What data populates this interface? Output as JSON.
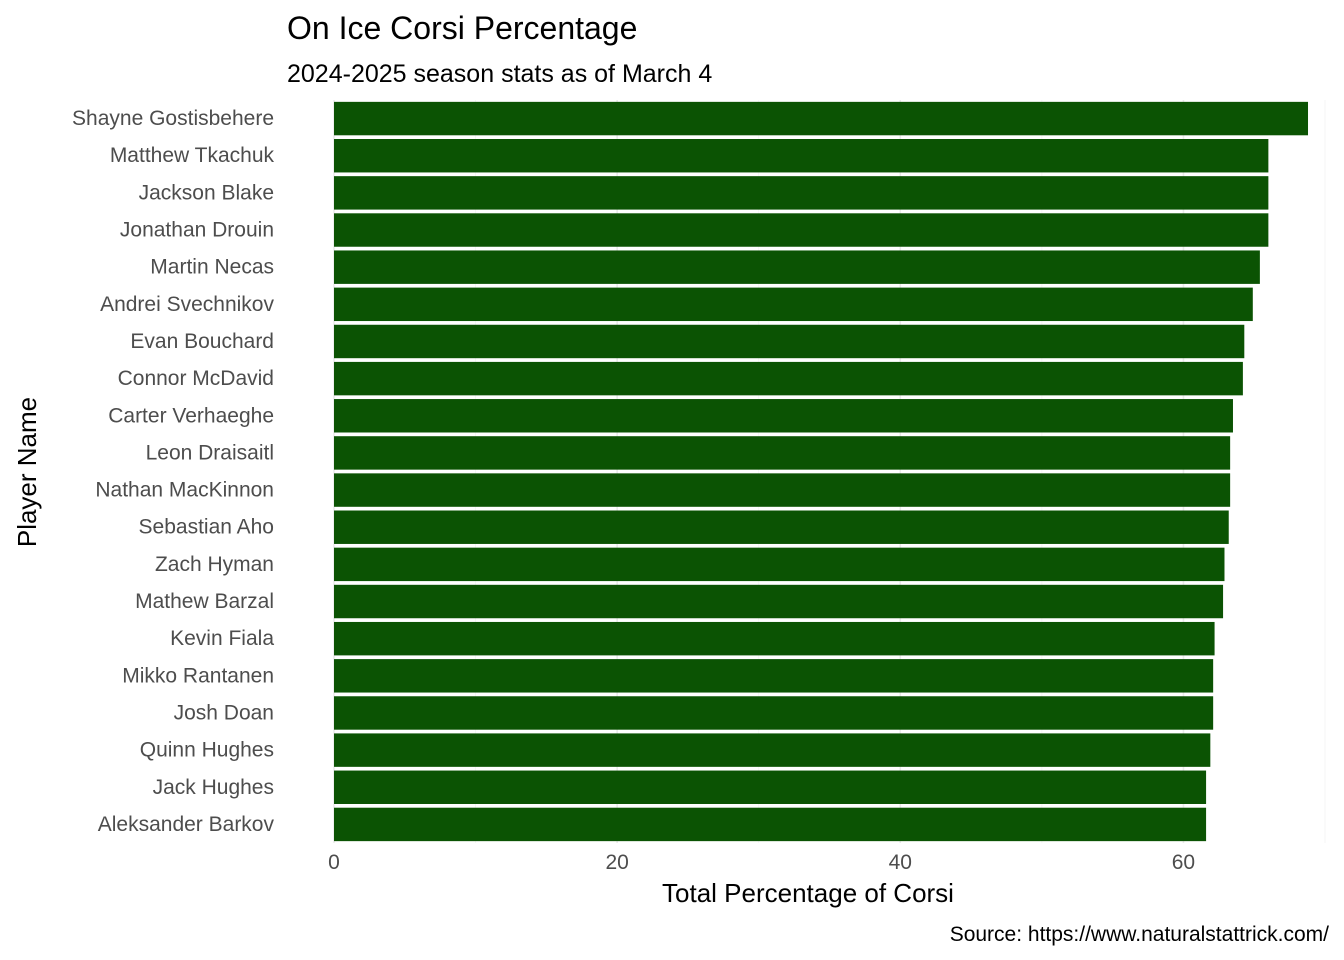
{
  "chart_data": {
    "type": "bar",
    "orientation": "horizontal",
    "title": "On Ice Corsi Percentage",
    "subtitle": "2024-2025 season stats as of March 4",
    "xlabel": "Total Percentage of Corsi",
    "ylabel": "Player Name",
    "caption": "Source: https://www.naturalstattrick.com/",
    "xlim": [
      0,
      70
    ],
    "xticks": [
      0,
      20,
      40,
      60
    ],
    "grid": true,
    "bar_color": "#0b5303",
    "categories": [
      "Shayne Gostisbehere",
      "Matthew Tkachuk",
      "Jackson Blake",
      "Jonathan Drouin",
      "Martin Necas",
      "Andrei Svechnikov",
      "Evan Bouchard",
      "Connor McDavid",
      "Carter Verhaeghe",
      "Leon Draisaitl",
      "Nathan MacKinnon",
      "Sebastian Aho",
      "Zach Hyman",
      "Mathew Barzal",
      "Kevin Fiala",
      "Mikko Rantanen",
      "Josh Doan",
      "Quinn Hughes",
      "Jack Hughes",
      "Aleksander Barkov"
    ],
    "values": [
      68.8,
      66.0,
      66.0,
      66.0,
      65.4,
      64.9,
      64.3,
      64.2,
      63.5,
      63.3,
      63.3,
      63.2,
      62.9,
      62.8,
      62.2,
      62.1,
      62.1,
      61.9,
      61.6,
      61.6
    ]
  }
}
